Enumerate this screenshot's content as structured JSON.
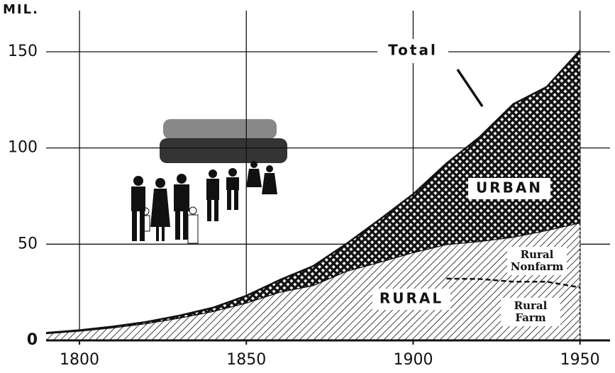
{
  "chart_data": {
    "type": "area",
    "y_label": "MIL.",
    "x": [
      1790,
      1800,
      1810,
      1820,
      1830,
      1840,
      1850,
      1860,
      1870,
      1880,
      1890,
      1900,
      1910,
      1920,
      1930,
      1940,
      1950
    ],
    "series": [
      {
        "name": "RURAL",
        "color": "#111111",
        "pattern": "hatch",
        "values": [
          3.7,
          5.0,
          6.7,
          8.9,
          11.8,
          15.2,
          19.6,
          25.2,
          28.7,
          36.1,
          40.8,
          45.8,
          50.0,
          51.6,
          53.8,
          57.3,
          61.2
        ]
      },
      {
        "name": "URBAN",
        "color": "#111111",
        "pattern": "crosshatch",
        "values": [
          0.2,
          0.3,
          0.5,
          0.7,
          1.1,
          1.8,
          3.6,
          6.2,
          9.9,
          14.1,
          22.1,
          30.2,
          42.0,
          54.2,
          69.0,
          74.4,
          89.5
        ]
      },
      {
        "name": "Rural Farm",
        "color": "#111111",
        "style": "dashed",
        "x": [
          1910,
          1920,
          1930,
          1940,
          1950
        ],
        "values": [
          32.1,
          31.9,
          30.5,
          30.5,
          27.5
        ]
      }
    ],
    "annotations": [
      "Total",
      "Rural Nonfarm"
    ],
    "xlim": [
      1790,
      1959
    ],
    "ylim": [
      0,
      164
    ],
    "xticks": [
      1800,
      1850,
      1900,
      1950
    ],
    "yticks": [
      0,
      50,
      100,
      150
    ],
    "grid": true
  }
}
